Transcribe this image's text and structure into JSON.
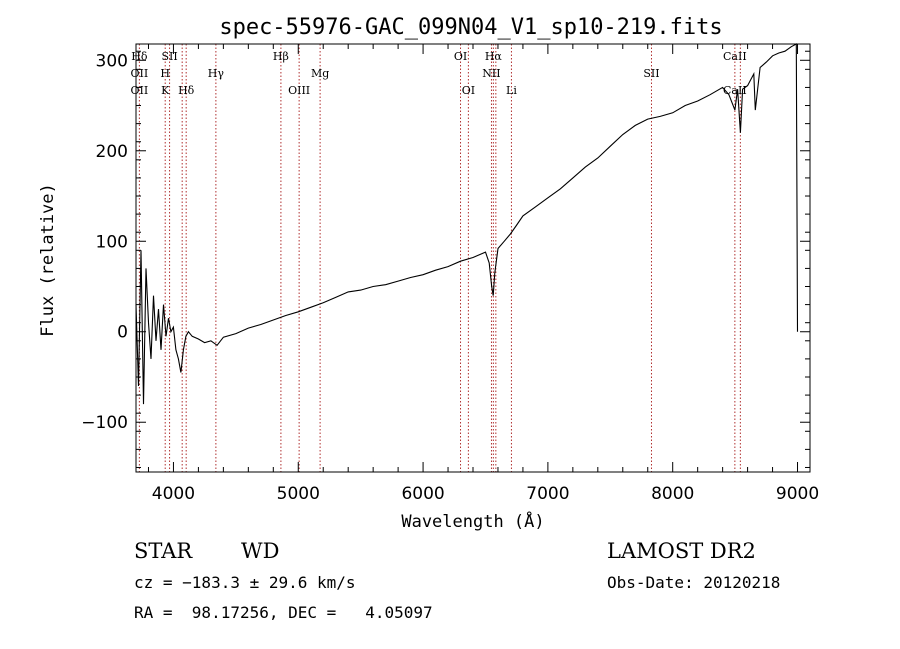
{
  "chart_data": {
    "type": "line",
    "title": "spec-55976-GAC_099N04_V1_sp10-219.fits",
    "xlabel": "Wavelength (Å)",
    "ylabel": "Flux (relative)",
    "xlim": [
      3700,
      9100
    ],
    "ylim": [
      -155,
      318
    ],
    "xticks": [
      4000,
      5000,
      6000,
      7000,
      8000,
      9000
    ],
    "yticks": [
      -100,
      0,
      100,
      200,
      300
    ],
    "grid": false,
    "series": [
      {
        "color": "#000000",
        "x": [
          3700,
          3720,
          3740,
          3760,
          3780,
          3800,
          3820,
          3840,
          3860,
          3880,
          3900,
          3920,
          3940,
          3960,
          3980,
          4000,
          4020,
          4040,
          4060,
          4080,
          4100,
          4120,
          4150,
          4200,
          4250,
          4300,
          4350,
          4400,
          4500,
          4600,
          4700,
          4800,
          4900,
          5000,
          5100,
          5200,
          5300,
          5400,
          5500,
          5600,
          5700,
          5800,
          5900,
          6000,
          6100,
          6200,
          6300,
          6400,
          6500,
          6530,
          6550,
          6562,
          6575,
          6600,
          6650,
          6700,
          6750,
          6800,
          6900,
          7000,
          7100,
          7200,
          7300,
          7400,
          7500,
          7600,
          7700,
          7800,
          7900,
          8000,
          8100,
          8200,
          8300,
          8400,
          8450,
          8498,
          8520,
          8542,
          8560,
          8600,
          8650,
          8662,
          8700,
          8750,
          8800,
          8850,
          8900,
          8950,
          8990,
          9000
        ],
        "y": [
          30,
          -60,
          90,
          -80,
          70,
          10,
          -30,
          40,
          -10,
          25,
          -20,
          30,
          -5,
          15,
          0,
          5,
          -20,
          -30,
          -45,
          -20,
          -5,
          0,
          -5,
          -8,
          -12,
          -10,
          -15,
          -6,
          -2,
          4,
          8,
          13,
          18,
          22,
          27,
          32,
          38,
          44,
          46,
          50,
          52,
          56,
          60,
          63,
          68,
          72,
          78,
          82,
          88,
          76,
          50,
          40,
          65,
          92,
          100,
          108,
          118,
          128,
          138,
          148,
          158,
          170,
          182,
          192,
          205,
          218,
          228,
          235,
          238,
          242,
          250,
          255,
          262,
          270,
          262,
          245,
          268,
          220,
          268,
          272,
          285,
          245,
          292,
          298,
          305,
          308,
          310,
          315,
          318,
          0
        ]
      }
    ],
    "lines": [
      {
        "wavelength": 3727,
        "label_top": "Hδ",
        "label_mid": "OII",
        "label_low": "OII"
      },
      {
        "wavelength": 3934,
        "label_top": "",
        "label_mid": "H",
        "label_low": "K"
      },
      {
        "wavelength": 3969,
        "label_top": "SII",
        "label_mid": "",
        "label_low": ""
      },
      {
        "wavelength": 4070,
        "label_top": "",
        "label_mid": "",
        "label_low": ""
      },
      {
        "wavelength": 4102,
        "label_top": "",
        "label_mid": "",
        "label_low": "Hδ"
      },
      {
        "wavelength": 4340,
        "label_top": "",
        "label_mid": "Hγ",
        "label_low": ""
      },
      {
        "wavelength": 4861,
        "label_top": "Hβ",
        "label_mid": "",
        "label_low": ""
      },
      {
        "wavelength": 5007,
        "label_top": "",
        "label_mid": "",
        "label_low": "OIII"
      },
      {
        "wavelength": 5175,
        "label_top": "",
        "label_mid": "Mg",
        "label_low": ""
      },
      {
        "wavelength": 6300,
        "label_top": "OI",
        "label_mid": "",
        "label_low": ""
      },
      {
        "wavelength": 6363,
        "label_top": "",
        "label_mid": "",
        "label_low": "OI"
      },
      {
        "wavelength": 6548,
        "label_top": "",
        "label_mid": "NII",
        "label_low": ""
      },
      {
        "wavelength": 6563,
        "label_top": "Hα",
        "label_mid": "",
        "label_low": ""
      },
      {
        "wavelength": 6583,
        "label_top": "",
        "label_mid": "",
        "label_low": ""
      },
      {
        "wavelength": 6708,
        "label_top": "",
        "label_mid": "",
        "label_low": "Li"
      },
      {
        "wavelength": 7830,
        "label_top": "",
        "label_mid": "SII",
        "label_low": ""
      },
      {
        "wavelength": 8498,
        "label_top": "CaII",
        "label_mid": "",
        "label_low": "CaII"
      },
      {
        "wavelength": 8542,
        "label_top": "",
        "label_mid": "",
        "label_low": ""
      }
    ],
    "line_color": "#b03030"
  },
  "footer": {
    "class_label": "STAR",
    "subclass_label": "WD",
    "cz_text": "cz = −183.3 ± 29.6 km/s",
    "coords_text": "RA =  98.17256, DEC =   4.05097",
    "survey_label": "LAMOST DR2",
    "obs_date_text": "Obs-Date: 20120218"
  }
}
